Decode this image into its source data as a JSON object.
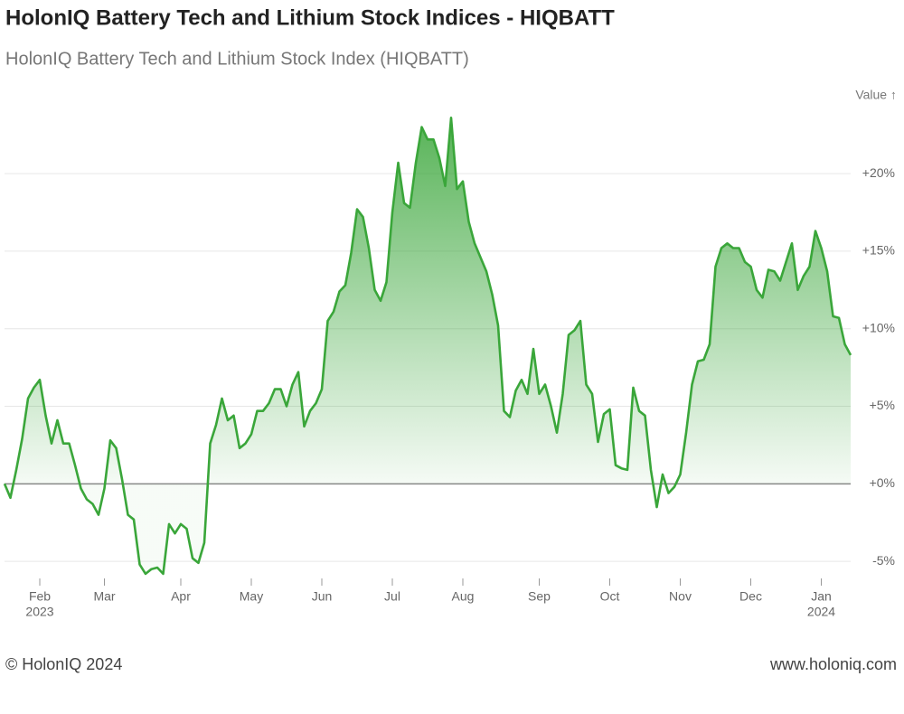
{
  "chart_data": {
    "type": "line",
    "title": "HolonIQ Battery Tech and Lithium Stock Indices - HIQBATT",
    "subtitle": "HolonIQ Battery Tech and Lithium Stock Index (HIQBATT)",
    "y_axis_label": "Value ↑",
    "footer_left": "© HolonIQ 2024",
    "footer_right": "www.holoniq.com",
    "color": "#3aa63a",
    "area": true,
    "grid": true,
    "ylim": [
      -6.1,
      24.2
    ],
    "yticks": [
      {
        "value": -5,
        "label": "-5%"
      },
      {
        "value": 0,
        "label": "+0%"
      },
      {
        "value": 5,
        "label": "+5%"
      },
      {
        "value": 10,
        "label": "+10%"
      },
      {
        "value": 15,
        "label": "+15%"
      },
      {
        "value": 20,
        "label": "+20%"
      }
    ],
    "categories": [
      null,
      null,
      null,
      null,
      null,
      null,
      "Feb",
      null,
      null,
      null,
      null,
      null,
      null,
      null,
      null,
      null,
      null,
      "Mar",
      null,
      null,
      null,
      null,
      null,
      null,
      null,
      null,
      null,
      null,
      null,
      null,
      "Apr",
      null,
      null,
      null,
      null,
      null,
      null,
      null,
      null,
      null,
      null,
      null,
      "May",
      null,
      null,
      null,
      null,
      null,
      null,
      null,
      null,
      null,
      null,
      null,
      "Jun",
      null,
      null,
      null,
      null,
      null,
      null,
      null,
      null,
      null,
      null,
      null,
      "Jul",
      null,
      null,
      null,
      null,
      null,
      null,
      null,
      null,
      null,
      null,
      null,
      "Aug",
      null,
      null,
      null,
      null,
      null,
      null,
      null,
      null,
      null,
      null,
      null,
      null,
      "Sep",
      null,
      null,
      null,
      null,
      null,
      null,
      null,
      null,
      null,
      null,
      null,
      "Oct",
      null,
      null,
      null,
      null,
      null,
      null,
      null,
      null,
      null,
      null,
      null,
      "Nov",
      null,
      null,
      null,
      null,
      null,
      null,
      null,
      null,
      null,
      null,
      null,
      "Dec",
      null,
      null,
      null,
      null,
      null,
      null,
      null,
      null,
      null,
      null,
      null,
      "Jan",
      null,
      null,
      null,
      null,
      null
    ],
    "category_years": [
      null,
      null,
      null,
      null,
      null,
      null,
      "2023",
      null,
      null,
      null,
      null,
      null,
      null,
      null,
      null,
      null,
      null,
      null,
      null,
      null,
      null,
      null,
      null,
      null,
      null,
      null,
      null,
      null,
      null,
      null,
      null,
      null,
      null,
      null,
      null,
      null,
      null,
      null,
      null,
      null,
      null,
      null,
      null,
      null,
      null,
      null,
      null,
      null,
      null,
      null,
      null,
      null,
      null,
      null,
      null,
      null,
      null,
      null,
      null,
      null,
      null,
      null,
      null,
      null,
      null,
      null,
      null,
      null,
      null,
      null,
      null,
      null,
      null,
      null,
      null,
      null,
      null,
      null,
      null,
      null,
      null,
      null,
      null,
      null,
      null,
      null,
      null,
      null,
      null,
      null,
      null,
      null,
      null,
      null,
      null,
      null,
      null,
      null,
      null,
      null,
      null,
      null,
      null,
      null,
      null,
      null,
      null,
      null,
      null,
      null,
      null,
      null,
      null,
      null,
      null,
      null,
      null,
      null,
      null,
      null,
      null,
      null,
      null,
      null,
      null,
      null,
      null,
      null,
      null,
      null,
      null,
      null,
      null,
      null,
      null,
      null,
      null,
      null,
      null,
      "2024",
      null,
      null,
      null,
      null,
      null
    ],
    "values": [
      0,
      -0.9,
      0.9,
      2.9,
      5.5,
      6.2,
      6.7,
      4.4,
      2.6,
      4.1,
      2.6,
      2.6,
      1.2,
      -0.3,
      -1.0,
      -1.3,
      -2.0,
      -0.3,
      2.8,
      2.3,
      0.3,
      -2.0,
      -2.3,
      -5.2,
      -5.8,
      -5.5,
      -5.4,
      -5.8,
      -2.6,
      -3.2,
      -2.6,
      -2.9,
      -4.8,
      -5.1,
      -3.8,
      2.6,
      3.8,
      5.5,
      4.1,
      4.4,
      2.3,
      2.6,
      3.2,
      4.7,
      4.7,
      5.2,
      6.1,
      6.1,
      5.0,
      6.4,
      7.2,
      3.7,
      4.7,
      5.2,
      6.1,
      10.5,
      11.1,
      12.4,
      12.8,
      14.9,
      17.7,
      17.2,
      15.2,
      12.5,
      11.8,
      13.0,
      17.5,
      20.7,
      18.1,
      17.8,
      20.7,
      23.0,
      22.2,
      22.2,
      21.0,
      19.2,
      23.6,
      19.0,
      19.5,
      16.9,
      15.5,
      14.6,
      13.7,
      12.2,
      10.2,
      4.7,
      4.3,
      6.0,
      6.7,
      5.8,
      8.7,
      5.8,
      6.4,
      5.0,
      3.3,
      5.8,
      9.6,
      9.9,
      10.5,
      6.4,
      5.8,
      2.7,
      4.5,
      4.8,
      1.2,
      1.0,
      0.9,
      6.2,
      4.7,
      4.4,
      0.9,
      -1.5,
      0.6,
      -0.6,
      -0.2,
      0.6,
      3.3,
      6.4,
      7.9,
      8.0,
      9.0,
      14.0,
      15.2,
      15.5,
      15.2,
      15.2,
      14.3,
      14.0,
      12.5,
      12.0,
      13.8,
      13.7,
      13.1,
      14.3,
      15.5,
      12.5,
      13.4,
      14.0,
      16.3,
      15.2,
      13.7,
      10.8,
      10.7,
      9.0,
      8.3
    ]
  }
}
